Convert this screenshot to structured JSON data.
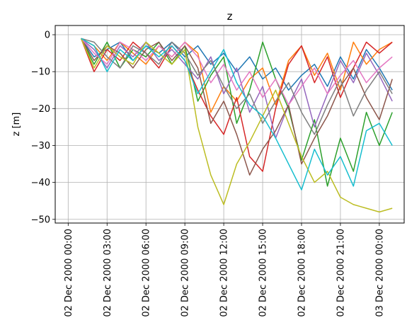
{
  "chart_data": {
    "type": "line",
    "title": "z",
    "xlabel": "",
    "ylabel": "z  [m]",
    "xlim": [
      "2000-12-01T23:00",
      "2000-12-03T01:55"
    ],
    "ylim": [
      -51,
      2.5
    ],
    "grid": true,
    "legend": "none",
    "x_ticks": [
      "02 Dec 2000 00:00",
      "02 Dec 2000 03:00",
      "02 Dec 2000 06:00",
      "02 Dec 2000 09:00",
      "02 Dec 2000 12:00",
      "02 Dec 2000 15:00",
      "02 Dec 2000 18:00",
      "02 Dec 2000 21:00",
      "03 Dec 2000 00:00"
    ],
    "y_ticks": [
      0,
      -10,
      -20,
      -30,
      -40,
      -50
    ],
    "x": [
      "2000-12-02T01:00",
      "2000-12-02T02:00",
      "2000-12-02T03:00",
      "2000-12-02T04:00",
      "2000-12-02T05:00",
      "2000-12-02T06:00",
      "2000-12-02T07:00",
      "2000-12-02T08:00",
      "2000-12-02T09:00",
      "2000-12-02T10:00",
      "2000-12-02T11:00",
      "2000-12-02T12:00",
      "2000-12-02T13:00",
      "2000-12-02T14:00",
      "2000-12-02T15:00",
      "2000-12-02T16:00",
      "2000-12-02T17:00",
      "2000-12-02T18:00",
      "2000-12-02T19:00",
      "2000-12-02T20:00",
      "2000-12-02T21:00",
      "2000-12-02T22:00",
      "2000-12-02T23:00",
      "2000-12-03T00:00",
      "2000-12-03T01:00"
    ],
    "series": [
      {
        "color": "#1f77b4",
        "values": [
          -1,
          -6,
          -4,
          -2,
          -7,
          -3,
          -5,
          -2,
          -6,
          -3,
          -8,
          -5,
          -10,
          -6,
          -12,
          -9,
          -15,
          -11,
          -8,
          -14,
          -6,
          -12,
          -4,
          -9,
          -15
        ]
      },
      {
        "color": "#ff7f0e",
        "values": [
          -1,
          -3,
          -7,
          -2,
          -5,
          -8,
          -3,
          -6,
          -2,
          -5,
          -21,
          -14,
          -18,
          -12,
          -9,
          -19,
          -7,
          -3,
          -11,
          -5,
          -15,
          -2,
          -8,
          -4,
          -2
        ]
      },
      {
        "color": "#2ca02c",
        "values": [
          -1,
          -8,
          -2,
          -9,
          -4,
          -6,
          -2,
          -8,
          -3,
          -18,
          -11,
          -6,
          -24,
          -15,
          -2,
          -12,
          -20,
          -34,
          -23,
          -41,
          -28,
          -37,
          -21,
          -30,
          -21
        ]
      },
      {
        "color": "#d62728",
        "values": [
          -1,
          -10,
          -4,
          -7,
          -2,
          -5,
          -9,
          -3,
          -7,
          -15,
          -22,
          -27,
          -17,
          -33,
          -37,
          -20,
          -8,
          -3,
          -13,
          -6,
          -17,
          -9,
          -2,
          -5,
          -2
        ]
      },
      {
        "color": "#9467bd",
        "values": [
          -1,
          -4,
          -9,
          -3,
          -6,
          -2,
          -7,
          -4,
          -8,
          -12,
          -6,
          -16,
          -9,
          -21,
          -14,
          -28,
          -19,
          -12,
          -25,
          -16,
          -7,
          -13,
          -5,
          -11,
          -18
        ]
      },
      {
        "color": "#8c564b",
        "values": [
          -1,
          -7,
          -3,
          -5,
          -9,
          -4,
          -2,
          -7,
          -3,
          -9,
          -24,
          -18,
          -27,
          -38,
          -31,
          -26,
          -19,
          -35,
          -28,
          -22,
          -14,
          -9,
          -17,
          -23,
          -12
        ]
      },
      {
        "color": "#e377c2",
        "values": [
          -1,
          -5,
          -8,
          -2,
          -4,
          -7,
          -3,
          -6,
          -2,
          -6,
          -13,
          -8,
          -15,
          -10,
          -17,
          -12,
          -19,
          -14,
          -9,
          -16,
          -11,
          -7,
          -13,
          -9,
          -6
        ]
      },
      {
        "color": "#7f7f7f",
        "values": [
          -1,
          -2,
          -6,
          -9,
          -3,
          -5,
          -8,
          -2,
          -5,
          -11,
          -7,
          -14,
          -20,
          -16,
          -24,
          -18,
          -13,
          -21,
          -27,
          -19,
          -12,
          -22,
          -15,
          -10,
          -16
        ]
      },
      {
        "color": "#bcbd22",
        "values": [
          -1,
          -9,
          -3,
          -6,
          -8,
          -2,
          -5,
          -8,
          -4,
          -25,
          -38,
          -46,
          -35,
          -29,
          -22,
          -15,
          -24,
          -33,
          -40,
          -37,
          -44,
          -46,
          -47,
          -48,
          -47
        ]
      },
      {
        "color": "#17becf",
        "values": [
          -1,
          -3,
          -10,
          -4,
          -7,
          -3,
          -6,
          -3,
          -7,
          -16,
          -10,
          -4,
          -13,
          -19,
          -22,
          -28,
          -35,
          -42,
          -31,
          -38,
          -33,
          -41,
          -26,
          -24,
          -30
        ]
      }
    ]
  }
}
